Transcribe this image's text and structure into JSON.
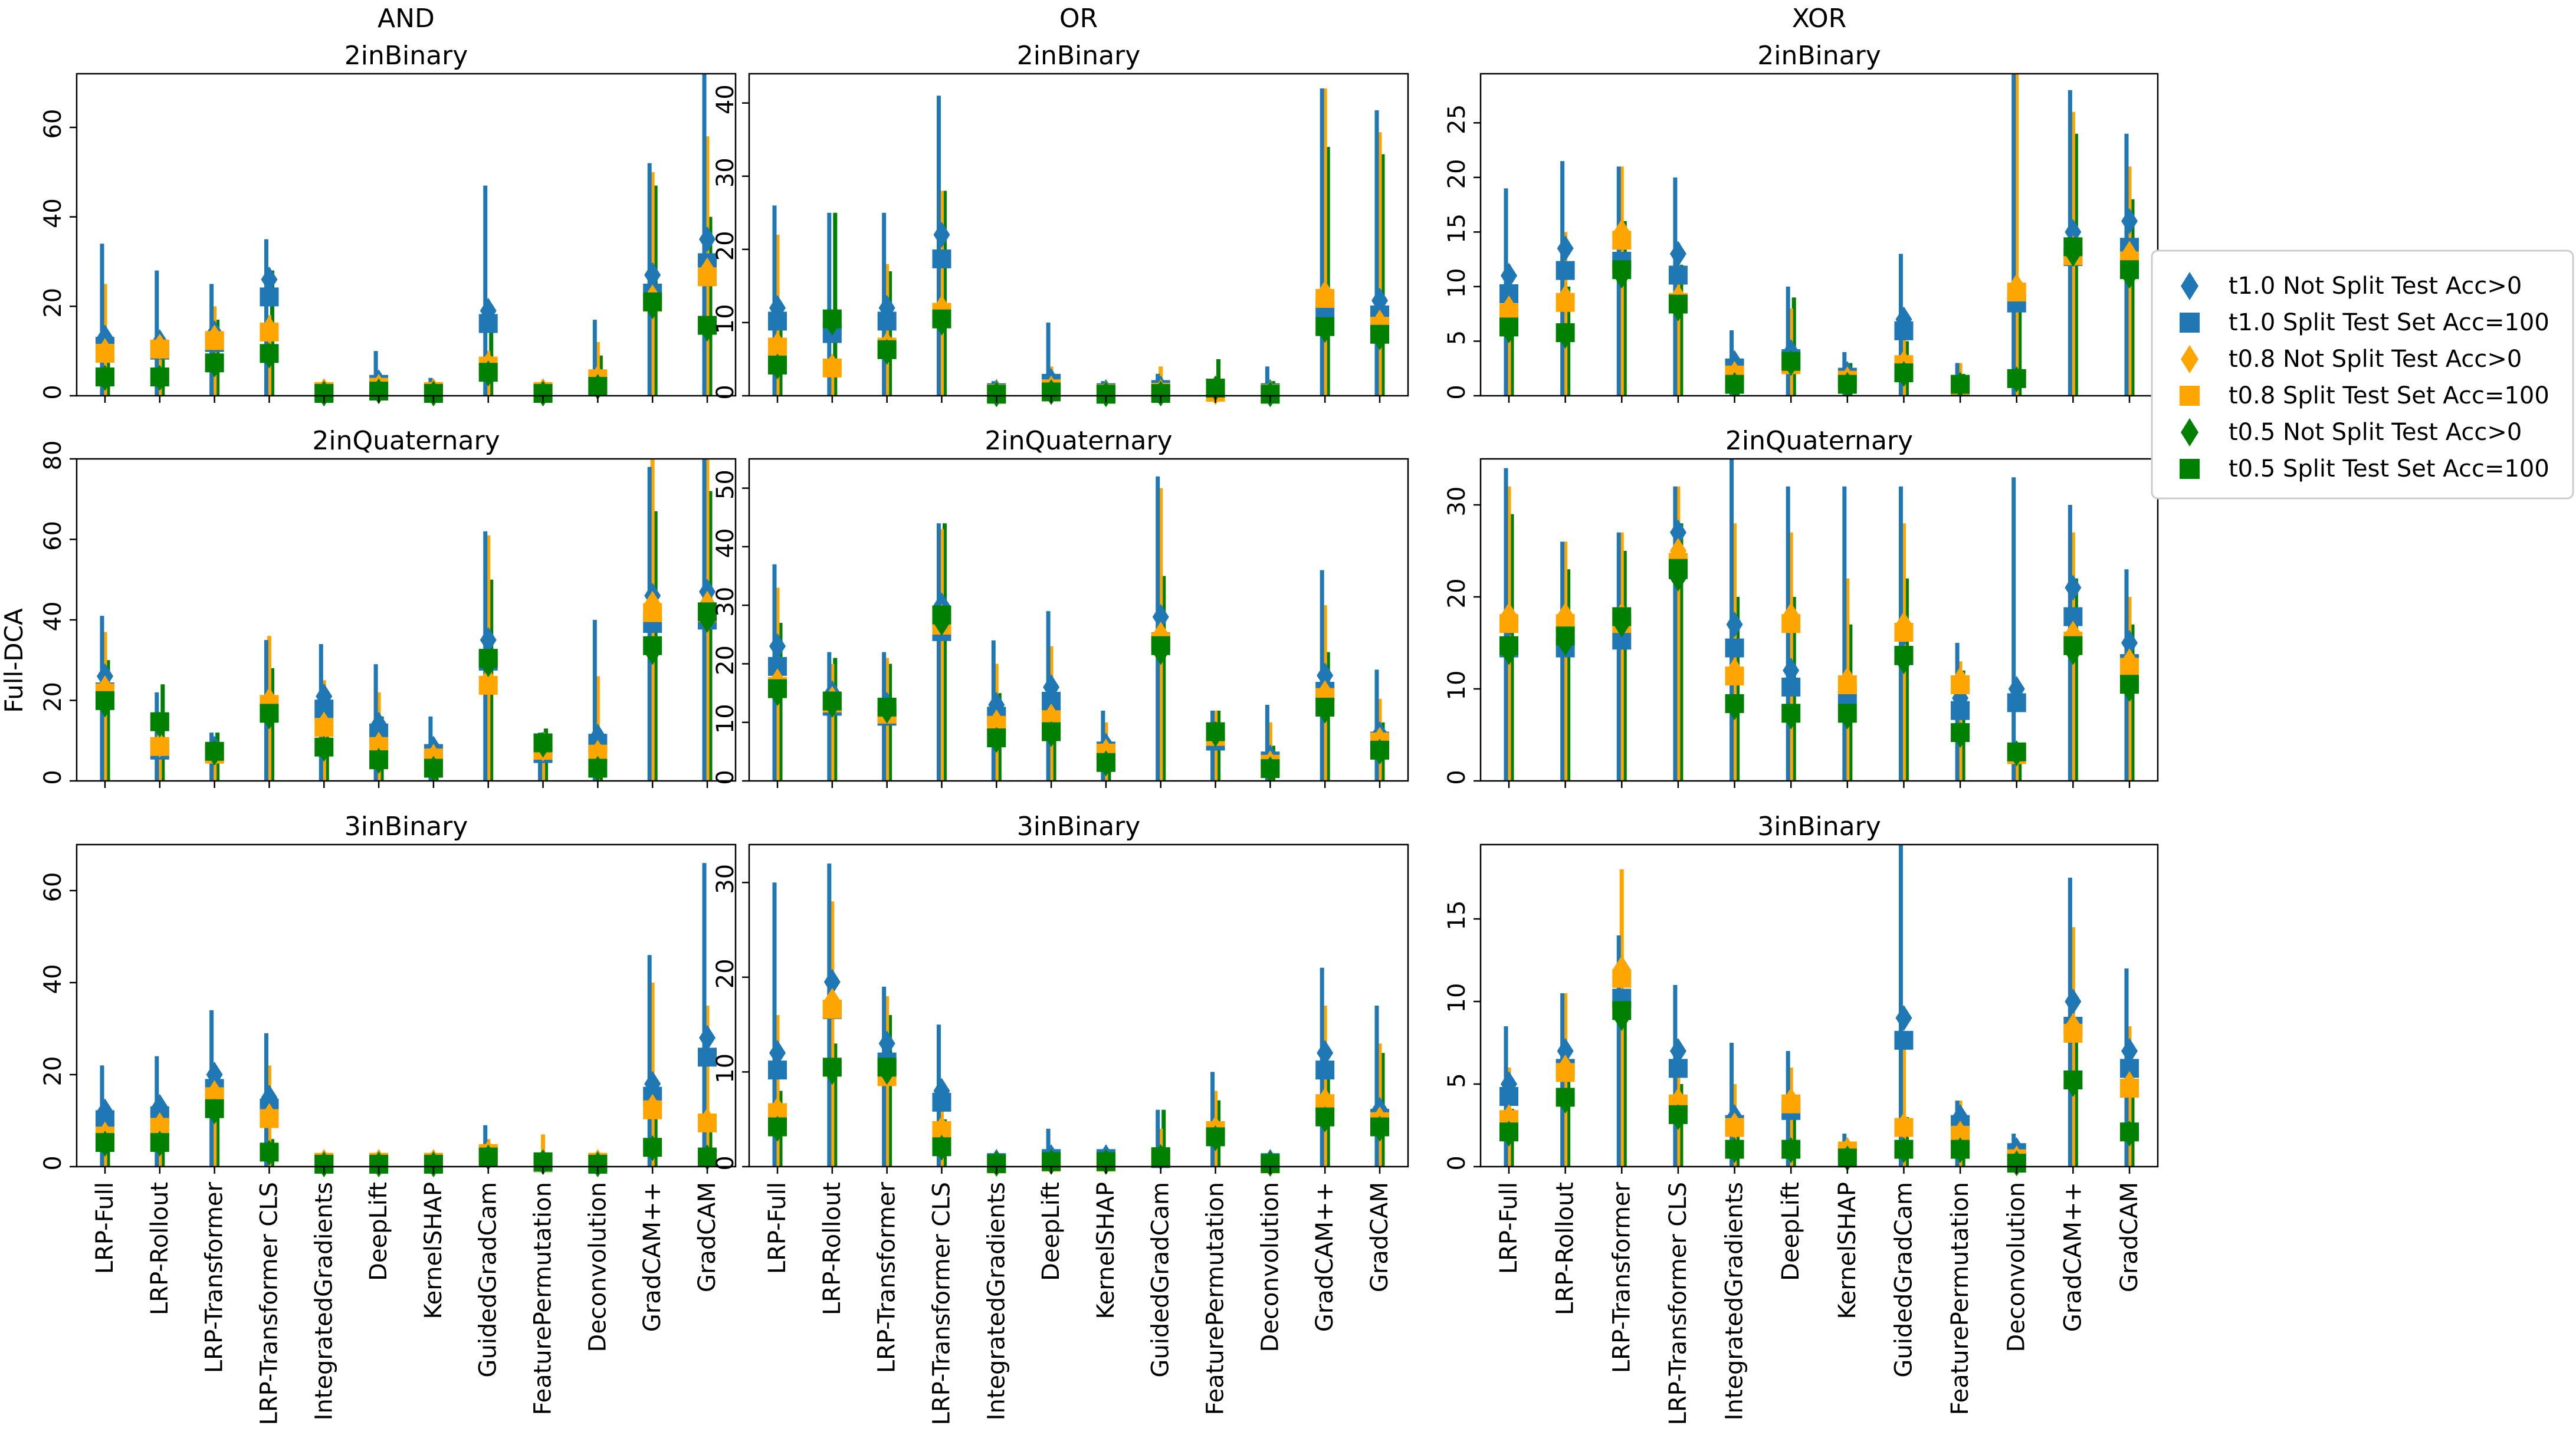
{
  "ylabel": "Full-DCA",
  "categories": [
    "LRP-Full",
    "LRP-Rollout",
    "LRP-Transformer",
    "LRP-Transformer CLS",
    "IntegratedGradients",
    "DeepLift",
    "KernelSHAP",
    "GuidedGradCam",
    "FeaturePermutation",
    "Deconvolution",
    "GradCAM++",
    "GradCAM"
  ],
  "column_titles": [
    "AND",
    "OR",
    "XOR"
  ],
  "series": [
    {
      "name": "t1.0 Not Split Test Acc>0",
      "color": "#1f77b4",
      "marker": "diamond"
    },
    {
      "name": "t1.0 Split Test Set Acc=100",
      "color": "#1f77b4",
      "marker": "square"
    },
    {
      "name": "t0.8 Not Split Test Acc>0",
      "color": "#ffa500",
      "marker": "diamond"
    },
    {
      "name": "t0.8 Split Test Set Acc=100",
      "color": "#ffa500",
      "marker": "square"
    },
    {
      "name": "t0.5 Not Split Test Acc>0",
      "color": "#008000",
      "marker": "diamond"
    },
    {
      "name": "t0.5 Split Test Set Acc=100",
      "color": "#008000",
      "marker": "square"
    }
  ],
  "chart_data": [
    {
      "type": "scatter",
      "title": "2inBinary",
      "column": "AND",
      "ylim": [
        0,
        72
      ],
      "yticks": [
        0,
        20,
        40,
        60
      ],
      "values": [
        [
          13,
          12,
          14,
          26,
          1,
          3,
          1,
          19,
          1,
          3,
          27,
          35
        ],
        [
          10,
          11,
          13,
          15,
          1,
          2,
          1,
          7,
          1,
          4,
          22,
          28
        ],
        [
          4,
          4,
          7,
          9,
          0.5,
          1,
          0.5,
          5,
          0.5,
          2,
          20,
          15
        ]
      ],
      "upper": [
        [
          34,
          28,
          25,
          35,
          2,
          10,
          4,
          47,
          2,
          17,
          52,
          72
        ],
        [
          25,
          14,
          20,
          18,
          1,
          5,
          2,
          10,
          1,
          12,
          50,
          58
        ],
        [
          12,
          10,
          17,
          28,
          1,
          4,
          2,
          20,
          1,
          9,
          47,
          40
        ]
      ]
    },
    {
      "type": "scatter",
      "title": "2inBinary",
      "column": "OR",
      "ylim": [
        0,
        44
      ],
      "yticks": [
        0,
        10,
        20,
        30,
        40
      ],
      "values": [
        [
          12,
          10,
          12,
          22,
          0.5,
          2,
          0.5,
          1,
          1,
          0.5,
          14,
          13
        ],
        [
          7,
          4,
          7,
          12,
          0.3,
          1,
          0.3,
          0.5,
          0.5,
          0.3,
          14,
          10
        ],
        [
          4,
          10,
          6,
          10,
          0.2,
          0.5,
          0.2,
          0.3,
          1,
          0.2,
          9,
          8
        ]
      ],
      "upper": [
        [
          26,
          25,
          25,
          41,
          2,
          10,
          2,
          3,
          2,
          4,
          42,
          39
        ],
        [
          22,
          5,
          18,
          28,
          1,
          4,
          1,
          4,
          2,
          2,
          42,
          36
        ],
        [
          10,
          25,
          17,
          28,
          1,
          2,
          1,
          2,
          5,
          2,
          34,
          33
        ]
      ]
    },
    {
      "type": "scatter",
      "title": "2inBinary",
      "column": "XOR",
      "ylim": [
        0,
        29.5
      ],
      "yticks": [
        0,
        5,
        10,
        15,
        20,
        25
      ],
      "values": [
        [
          11,
          13.5,
          14.5,
          13,
          3,
          4,
          2,
          7,
          1,
          10,
          15,
          16
        ],
        [
          8,
          9,
          15,
          9,
          2,
          3,
          1.5,
          3,
          1,
          10,
          13.5,
          13
        ],
        [
          6,
          5.5,
          11,
          8,
          1,
          3,
          1,
          2,
          1,
          1.5,
          13,
          11
        ]
      ],
      "upper": [
        [
          19,
          21.5,
          21,
          20,
          6,
          10,
          4,
          13,
          3,
          29.5,
          28,
          24
        ],
        [
          12,
          15,
          21,
          14,
          3,
          8,
          3,
          6,
          3,
          29.5,
          26,
          21
        ],
        [
          10,
          10,
          16,
          12,
          2,
          9,
          3,
          5,
          2,
          9,
          24,
          18
        ]
      ]
    },
    {
      "type": "scatter",
      "title": "2inQuaternary",
      "column": "AND",
      "ylim": [
        0,
        80
      ],
      "yticks": [
        0,
        20,
        40,
        60,
        80
      ],
      "values": [
        [
          26,
          9,
          8,
          20,
          21,
          14,
          8,
          35,
          8,
          11,
          46,
          47
        ],
        [
          23,
          9,
          7,
          20,
          14,
          9,
          6,
          25,
          8,
          7,
          44,
          44
        ],
        [
          19,
          14,
          7,
          16,
          8,
          5,
          3,
          29,
          9,
          3,
          32,
          40
        ]
      ],
      "upper": [
        [
          41,
          22,
          12,
          35,
          34,
          29,
          16,
          62,
          12,
          40,
          78,
          80
        ],
        [
          37,
          15,
          10,
          36,
          25,
          22,
          10,
          61,
          12,
          26,
          80,
          80
        ],
        [
          30,
          24,
          12,
          28,
          18,
          16,
          8,
          50,
          13,
          10,
          67,
          72
        ]
      ]
    },
    {
      "type": "scatter",
      "title": "2inQuaternary",
      "column": "OR",
      "ylim": [
        0,
        55
      ],
      "yticks": [
        0,
        10,
        20,
        30,
        40,
        50
      ],
      "values": [
        [
          23,
          15,
          13,
          30,
          13,
          16,
          6,
          28,
          8,
          4,
          18,
          8
        ],
        [
          17,
          14,
          12,
          28,
          10,
          11,
          5,
          25,
          8,
          3,
          15,
          7
        ],
        [
          15,
          13,
          12,
          27,
          7,
          8,
          3,
          22,
          8,
          2,
          12,
          5
        ]
      ],
      "upper": [
        [
          37,
          22,
          22,
          44,
          24,
          29,
          12,
          52,
          12,
          13,
          36,
          19
        ],
        [
          33,
          20,
          21,
          43,
          20,
          23,
          10,
          50,
          12,
          10,
          30,
          14
        ],
        [
          27,
          21,
          20,
          44,
          15,
          15,
          7,
          35,
          12,
          6,
          22,
          10
        ]
      ]
    },
    {
      "type": "scatter",
      "title": "2inQuaternary",
      "column": "XOR",
      "ylim": [
        0,
        35
      ],
      "yticks": [
        0,
        10,
        20,
        30
      ],
      "values": [
        [
          17,
          17,
          18,
          27,
          17,
          12,
          11,
          16,
          9,
          10,
          21,
          15
        ],
        [
          18,
          18,
          18,
          25,
          12,
          18,
          11,
          17,
          11,
          3,
          16,
          13
        ],
        [
          14,
          15,
          17,
          22,
          8,
          7,
          7,
          13,
          5,
          3,
          14,
          10
        ]
      ],
      "upper": [
        [
          34,
          26,
          27,
          32,
          35,
          32,
          32,
          32,
          15,
          33,
          30,
          23
        ],
        [
          32,
          26,
          27,
          32,
          28,
          27,
          22,
          28,
          13,
          4,
          27,
          20
        ],
        [
          29,
          23,
          25,
          28,
          20,
          20,
          17,
          22,
          12,
          4,
          22,
          17
        ]
      ]
    },
    {
      "type": "scatter",
      "title": "3inBinary",
      "column": "AND",
      "ylim": [
        0,
        70
      ],
      "yticks": [
        0,
        20,
        40,
        60
      ],
      "values": [
        [
          12,
          13,
          20,
          15,
          1,
          1,
          1,
          3,
          1,
          1,
          18,
          28
        ],
        [
          7,
          9,
          16,
          11,
          1,
          1,
          1,
          3,
          1,
          1,
          13,
          10
        ],
        [
          5,
          5,
          12,
          3,
          0.5,
          0.5,
          0.5,
          2,
          1,
          0.5,
          4,
          2
        ]
      ],
      "upper": [
        [
          22,
          24,
          34,
          29,
          2,
          3,
          2,
          9,
          3,
          3,
          46,
          66
        ],
        [
          12,
          12,
          22,
          22,
          2,
          2,
          2,
          6,
          7,
          2,
          40,
          35
        ],
        [
          9,
          8,
          16,
          6,
          1,
          1,
          1,
          4,
          2,
          1,
          11,
          8
        ]
      ]
    },
    {
      "type": "scatter",
      "title": "3inBinary",
      "column": "OR",
      "ylim": [
        0,
        34
      ],
      "yticks": [
        0,
        10,
        20,
        30
      ],
      "values": [
        [
          12,
          19.5,
          13,
          8,
          0.5,
          1,
          1,
          1,
          4,
          0.5,
          12,
          6
        ],
        [
          6,
          17.5,
          10,
          4,
          0.3,
          0.5,
          0.5,
          1,
          4,
          0.3,
          7,
          5
        ],
        [
          4,
          10,
          10,
          2,
          0.3,
          0.5,
          0.5,
          1,
          3,
          0.3,
          5,
          4
        ]
      ],
      "upper": [
        [
          30,
          32,
          19,
          15,
          1,
          4,
          1.5,
          6,
          10,
          1,
          21,
          17
        ],
        [
          16,
          28,
          18,
          7,
          1,
          2,
          1,
          4,
          8,
          1,
          17,
          13
        ],
        [
          8,
          13,
          16,
          5,
          1,
          1,
          1,
          6,
          7,
          1,
          10,
          12
        ]
      ]
    },
    {
      "type": "scatter",
      "title": "3inBinary",
      "column": "XOR",
      "ylim": [
        0,
        19.5
      ],
      "yticks": [
        0,
        5,
        10,
        15
      ],
      "values": [
        [
          5,
          7,
          12,
          7,
          3,
          4,
          1,
          9,
          3,
          1,
          10,
          7
        ],
        [
          3,
          6,
          12,
          4,
          2.5,
          4,
          1,
          2.5,
          2,
          0.5,
          8.5,
          5
        ],
        [
          2,
          4,
          9,
          3,
          1,
          1,
          0.5,
          1,
          1,
          0.2,
          5,
          2
        ]
      ],
      "upper": [
        [
          8.5,
          10.5,
          14,
          11,
          7.5,
          7,
          2,
          19.5,
          4,
          2,
          17.5,
          12
        ],
        [
          6,
          10.5,
          18,
          6,
          5,
          6,
          1.5,
          7.5,
          4,
          1,
          14.5,
          8.5
        ],
        [
          3.5,
          6,
          10,
          5,
          3,
          3,
          1,
          3,
          2,
          0.5,
          9,
          5
        ]
      ]
    }
  ]
}
